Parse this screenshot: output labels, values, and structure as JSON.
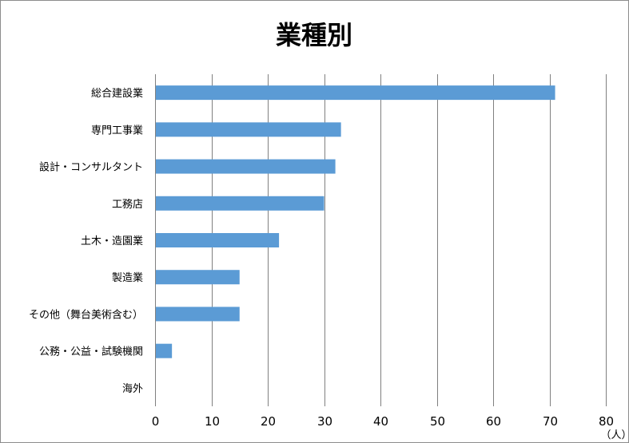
{
  "chart_data": {
    "type": "bar",
    "orientation": "horizontal",
    "title": "業種別",
    "unit": "（人）",
    "categories": [
      "総合建設業",
      "専門工事業",
      "設計・コンサルタント",
      "工務店",
      "土木・造園業",
      "製造業",
      "その他（舞台美術含む）",
      "公務・公益・試験機関",
      "海外"
    ],
    "values": [
      71,
      33,
      32,
      30,
      22,
      15,
      15,
      3,
      0
    ],
    "xlim": [
      0,
      80
    ],
    "xticks": [
      "0",
      "10",
      "20",
      "30",
      "40",
      "50",
      "60",
      "70",
      "80"
    ],
    "grid": true,
    "legend": "none",
    "colors": {
      "bar": "#5b9bd5",
      "grid": "#808080",
      "axis": "#808080",
      "border": "#8c8c8c"
    }
  }
}
